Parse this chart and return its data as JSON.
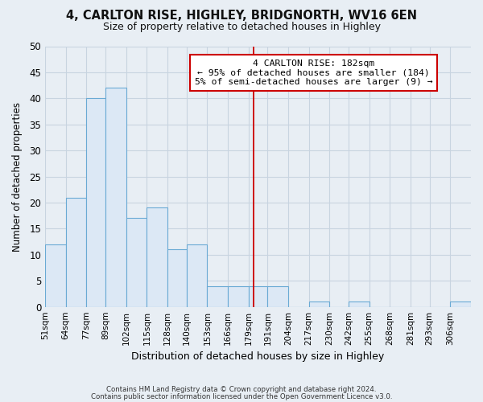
{
  "title": "4, CARLTON RISE, HIGHLEY, BRIDGNORTH, WV16 6EN",
  "subtitle": "Size of property relative to detached houses in Highley",
  "xlabel": "Distribution of detached houses by size in Highley",
  "ylabel": "Number of detached properties",
  "footnote1": "Contains HM Land Registry data © Crown copyright and database right 2024.",
  "footnote2": "Contains public sector information licensed under the Open Government Licence v3.0.",
  "bin_labels": [
    "51sqm",
    "64sqm",
    "77sqm",
    "89sqm",
    "102sqm",
    "115sqm",
    "128sqm",
    "140sqm",
    "153sqm",
    "166sqm",
    "179sqm",
    "191sqm",
    "204sqm",
    "217sqm",
    "230sqm",
    "242sqm",
    "255sqm",
    "268sqm",
    "281sqm",
    "293sqm",
    "306sqm"
  ],
  "bin_edges": [
    51,
    64,
    77,
    89,
    102,
    115,
    128,
    140,
    153,
    166,
    179,
    191,
    204,
    217,
    230,
    242,
    255,
    268,
    281,
    293,
    306
  ],
  "bar_heights": [
    12,
    21,
    40,
    42,
    17,
    19,
    11,
    12,
    4,
    4,
    4,
    4,
    0,
    1,
    0,
    1,
    0,
    0,
    0,
    0,
    1
  ],
  "bar_color": "#dce8f5",
  "bar_edge_color": "#6aaad4",
  "vline_x": 182,
  "vline_color": "#cc0000",
  "ylim": [
    0,
    50
  ],
  "yticks": [
    0,
    5,
    10,
    15,
    20,
    25,
    30,
    35,
    40,
    45,
    50
  ],
  "annotation_title": "4 CARLTON RISE: 182sqm",
  "annotation_line1": "← 95% of detached houses are smaller (184)",
  "annotation_line2": "5% of semi-detached houses are larger (9) →",
  "annotation_box_color": "#ffffff",
  "annotation_box_edge": "#cc0000",
  "grid_color": "#c8d4e0",
  "background_color": "#e8eef4"
}
